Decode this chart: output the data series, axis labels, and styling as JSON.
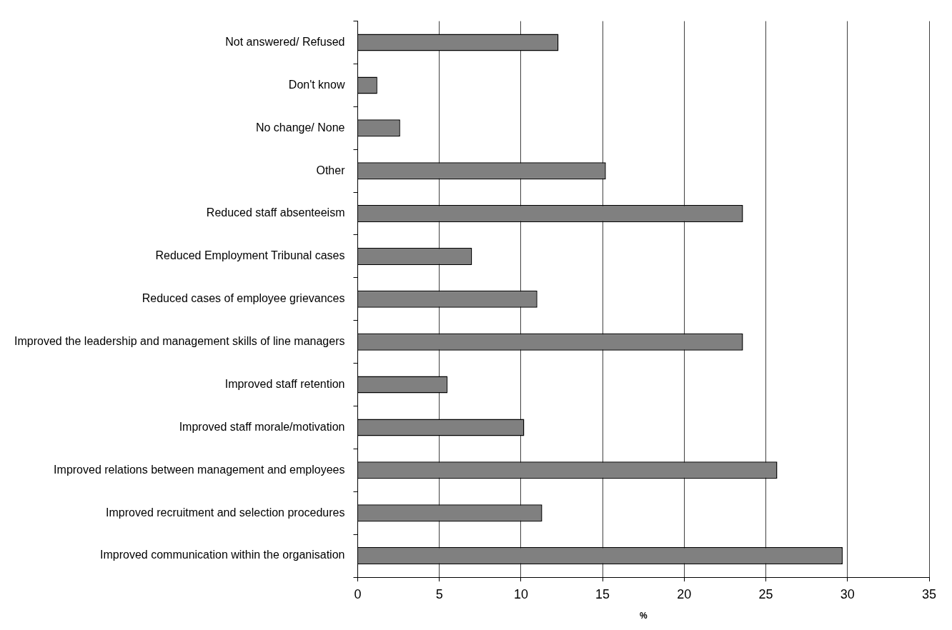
{
  "chart_data": {
    "type": "bar",
    "orientation": "horizontal",
    "xlabel": "%",
    "categories": [
      "Not answered/ Refused",
      "Don't know",
      "No change/ None",
      "Other",
      "Reduced staff absenteeism",
      "Reduced Employment Tribunal cases",
      "Reduced cases of employee grievances",
      "Improved the leadership and management skills of line managers",
      "Improved staff retention",
      "Improved staff morale/motivation",
      "Improved relations between management and employees",
      "Improved recruitment and selection procedures",
      "Improved communication within the organisation"
    ],
    "values": [
      12.3,
      1.2,
      2.6,
      15.2,
      23.6,
      7.0,
      11.0,
      23.6,
      5.5,
      10.2,
      25.7,
      11.3,
      29.7
    ],
    "color": "#808080",
    "xlim": [
      0,
      35
    ],
    "xticks": [
      0,
      5,
      10,
      15,
      20,
      25,
      30,
      35
    ],
    "grid": "x",
    "legend": false
  }
}
